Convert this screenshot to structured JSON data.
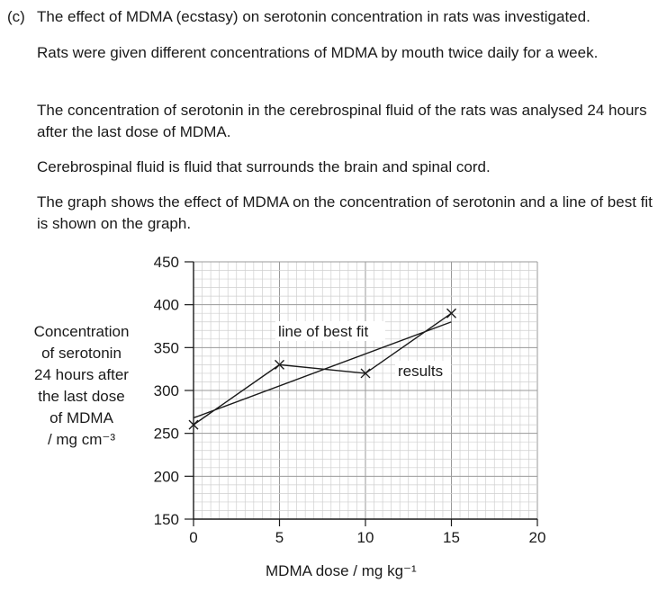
{
  "question": {
    "label": "(c)",
    "intro": "The effect of MDMA (ecstasy) on serotonin concentration in rats was investigated.",
    "paragraphs": [
      "Rats were given different concentrations of MDMA by mouth twice daily for a week.",
      "The concentration of serotonin in the cerebrospinal fluid of the rats was analysed 24 hours after the last dose of MDMA.",
      "Cerebrospinal fluid is fluid that surrounds the brain and spinal cord.",
      "The graph shows the effect of MDMA on the concentration of serotonin and a line of best fit is shown on the graph."
    ]
  },
  "chart_data": {
    "type": "line",
    "xlabel": "MDMA dose / mg kg⁻¹",
    "ylabel_lines": [
      "Concentration",
      "of serotonin",
      "24 hours after",
      "the last dose",
      "of MDMA",
      "/ mg cm⁻³"
    ],
    "xlim": [
      0,
      20
    ],
    "ylim": [
      150,
      450
    ],
    "x_ticks": [
      0,
      5,
      10,
      15,
      20
    ],
    "y_ticks": [
      150,
      200,
      250,
      300,
      350,
      400,
      450
    ],
    "grid": true,
    "series": [
      {
        "name": "results",
        "x": [
          0,
          5,
          10,
          15
        ],
        "values": [
          260,
          330,
          320,
          390
        ],
        "marker": "x"
      },
      {
        "name": "line of best fit",
        "x": [
          0,
          15
        ],
        "values": [
          268,
          380
        ]
      }
    ],
    "annotations": [
      "line of best fit",
      "results"
    ]
  }
}
